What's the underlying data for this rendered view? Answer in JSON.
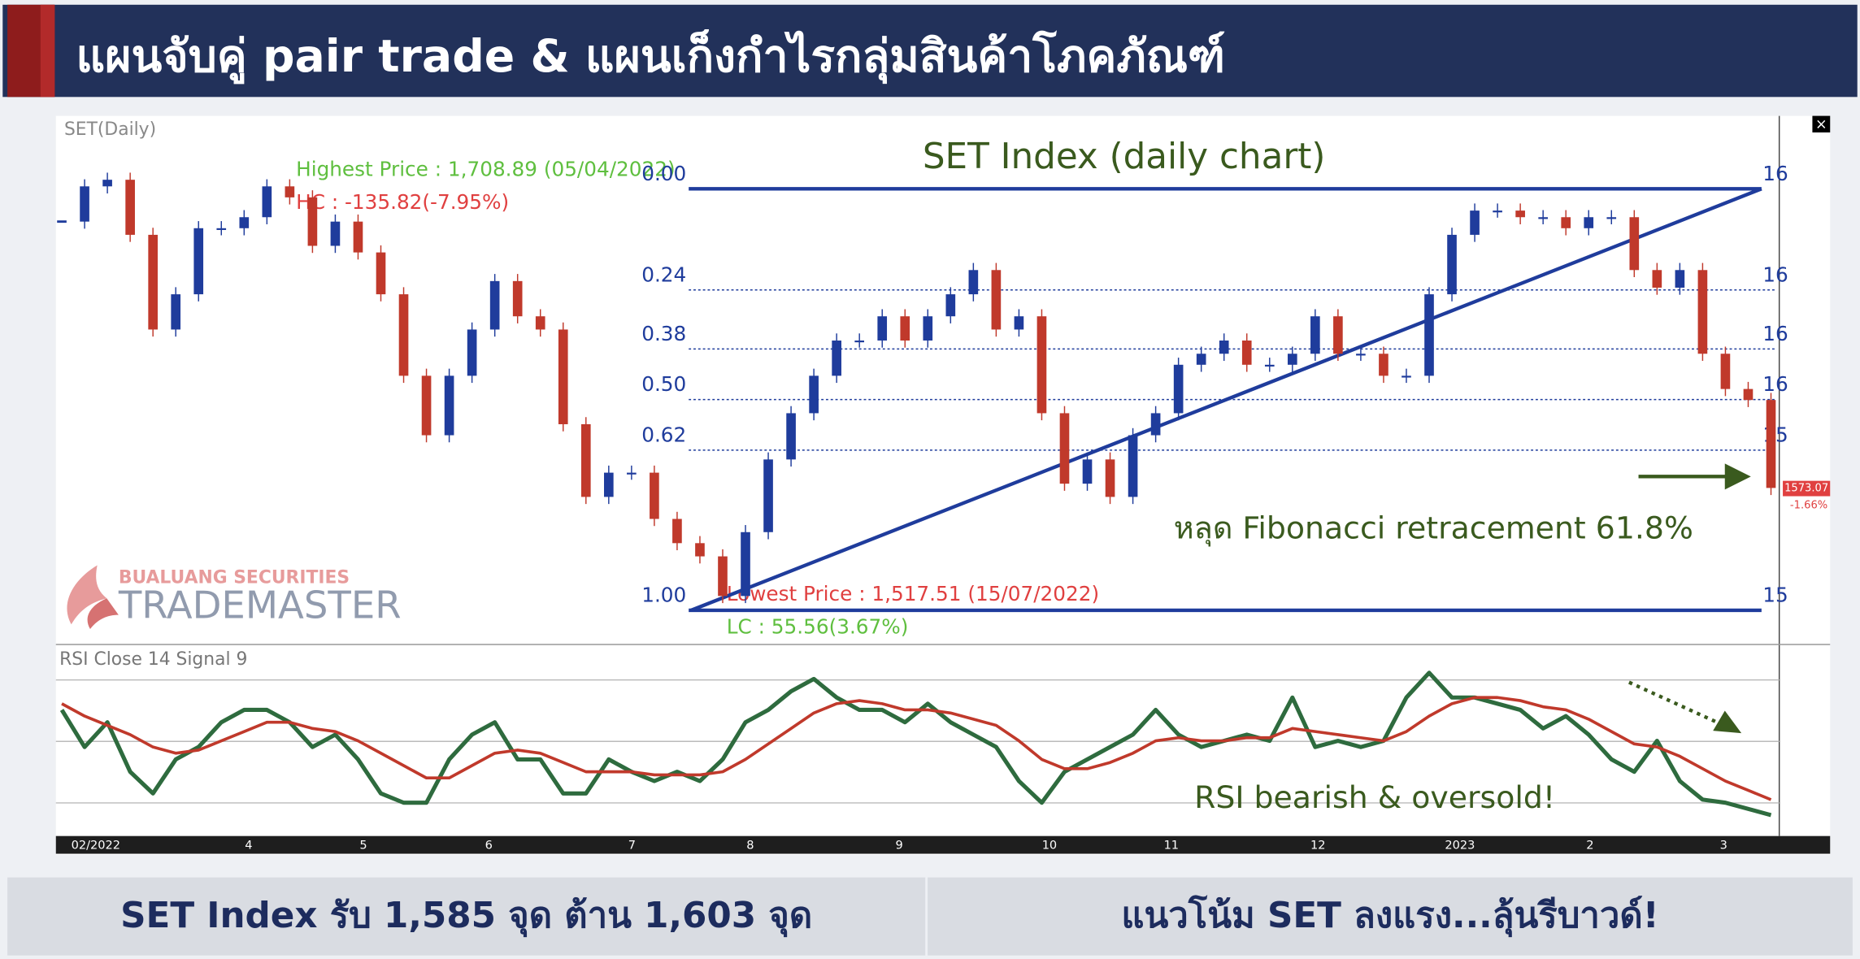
{
  "header": {
    "title": "แผนจับคู่ pair trade & แผนเก็งกำไรกลุ่มสินค้าโภคภัณฑ์"
  },
  "chart_data": {
    "type": "candlestick",
    "title": "SET Index (daily chart)",
    "symbol_label": "SET(Daily)",
    "close": [
      1694,
      1710,
      1713,
      1688,
      1645,
      1661,
      1691,
      1691,
      1696,
      1710,
      1705,
      1683,
      1694,
      1680,
      1661,
      1624,
      1597,
      1624,
      1645,
      1667,
      1651,
      1645,
      1602,
      1569,
      1580,
      1580,
      1559,
      1548,
      1542,
      1524,
      1553,
      1586,
      1607,
      1624,
      1640,
      1640,
      1651,
      1640,
      1651,
      1661,
      1672,
      1645,
      1651,
      1607,
      1575,
      1586,
      1569,
      1597,
      1607,
      1629,
      1634,
      1640,
      1629,
      1629,
      1634,
      1651,
      1634,
      1634,
      1624,
      1624,
      1661,
      1688,
      1699,
      1699,
      1696,
      1696,
      1691,
      1696,
      1696,
      1672,
      1664,
      1672,
      1634,
      1618,
      1613,
      1573.07
    ],
    "ylim": [
      1502,
      1742
    ],
    "color_up": "#1f3c9c",
    "color_down": "#c0392b",
    "last_price_label": "1573.07",
    "change_label": "-1.66%",
    "highest_label": "Highest Price : 1,708.89 (05/04/2022)",
    "hc_label": "HC : -135.82(-7.95%)",
    "lowest_label": "Lowest Price : 1,517.51 (15/07/2022)",
    "lc_label": "LC : 55.56(3.67%)",
    "fib": {
      "high": 1708.89,
      "low": 1517.51,
      "levels": [
        {
          "value": 0,
          "label": "0.00"
        },
        0.24,
        0.38,
        {
          "value": 0.5,
          "label": "0.50"
        },
        0.62,
        {
          "value": 1,
          "label": "1.00"
        }
      ]
    },
    "right_axis_labels": [
      "16",
      "16",
      "16",
      "16",
      "15",
      "15"
    ],
    "annotation": "หลุด Fibonacci retracement 61.8%",
    "x_labels": [
      "02/2022",
      "4",
      "5",
      "6",
      "7",
      "8",
      "9",
      "10",
      "11",
      "12",
      "2023",
      "2",
      "3"
    ],
    "rsi": {
      "title": "RSI Close 14 Signal 9",
      "ylim": [
        20,
        80
      ],
      "annotation": "RSI bearish & oversold!",
      "series": [
        {
          "name": "RSI",
          "color": "#2e6b3e",
          "values": [
            60,
            48,
            56,
            40,
            33,
            44,
            48,
            56,
            60,
            60,
            56,
            48,
            52,
            44,
            33,
            30,
            30,
            44,
            52,
            56,
            44,
            44,
            33,
            33,
            44,
            40,
            37,
            40,
            37,
            44,
            56,
            60,
            66,
            70,
            64,
            60,
            60,
            56,
            62,
            56,
            52,
            48,
            37,
            30,
            40,
            44,
            48,
            52,
            60,
            52,
            48,
            50,
            52,
            50,
            64,
            48,
            50,
            48,
            50,
            64,
            72,
            64,
            64,
            62,
            60,
            54,
            58,
            52,
            44,
            40,
            50,
            37,
            31,
            30,
            28,
            26
          ]
        },
        {
          "name": "Signal",
          "color": "#c0392b",
          "values": [
            62,
            58,
            55,
            52,
            48,
            46,
            47,
            50,
            53,
            56,
            56,
            54,
            53,
            50,
            46,
            42,
            38,
            38,
            42,
            46,
            47,
            46,
            43,
            40,
            40,
            40,
            39,
            39,
            39,
            40,
            44,
            49,
            54,
            59,
            62,
            63,
            62,
            60,
            60,
            59,
            57,
            55,
            50,
            44,
            41,
            41,
            43,
            46,
            50,
            51,
            50,
            50,
            51,
            51,
            54,
            53,
            52,
            51,
            50,
            53,
            58,
            62,
            64,
            64,
            63,
            61,
            60,
            57,
            53,
            49,
            48,
            45,
            41,
            37,
            34,
            31
          ]
        }
      ]
    }
  },
  "logo": {
    "line1": "BUALUANG SECURITIES",
    "line2": "TRADEMASTER"
  },
  "footer": [
    "SET Index รับ 1,585 จุด ต้าน 1,603 จุด",
    "แนวโน้ม SET ลงแรง...ลุ้นรีบาวด์!"
  ]
}
